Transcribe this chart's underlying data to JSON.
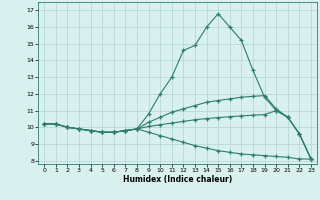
{
  "title": "",
  "xlabel": "Humidex (Indice chaleur)",
  "x_values": [
    0,
    1,
    2,
    3,
    4,
    5,
    6,
    7,
    8,
    9,
    10,
    11,
    12,
    13,
    14,
    15,
    16,
    17,
    18,
    19,
    20,
    21,
    22,
    23
  ],
  "line1_y": [
    10.2,
    10.2,
    10.0,
    9.9,
    9.8,
    9.7,
    9.7,
    9.8,
    9.9,
    10.8,
    12.0,
    13.0,
    14.6,
    14.9,
    16.0,
    16.8,
    16.0,
    15.2,
    13.4,
    11.8,
    11.0,
    10.6,
    9.6,
    8.1
  ],
  "line2_y": [
    10.2,
    10.2,
    10.0,
    9.9,
    9.8,
    9.7,
    9.7,
    9.8,
    9.9,
    10.3,
    10.6,
    10.9,
    11.1,
    11.3,
    11.5,
    11.6,
    11.7,
    11.8,
    11.85,
    11.9,
    11.1,
    10.6,
    9.6,
    8.1
  ],
  "line3_y": [
    10.2,
    10.2,
    10.0,
    9.9,
    9.8,
    9.7,
    9.7,
    9.8,
    9.9,
    10.05,
    10.15,
    10.25,
    10.35,
    10.45,
    10.52,
    10.58,
    10.63,
    10.68,
    10.72,
    10.76,
    11.0,
    10.6,
    9.6,
    8.1
  ],
  "line4_y": [
    10.2,
    10.2,
    10.0,
    9.9,
    9.8,
    9.7,
    9.7,
    9.8,
    9.9,
    9.7,
    9.5,
    9.3,
    9.1,
    8.9,
    8.75,
    8.6,
    8.5,
    8.4,
    8.35,
    8.3,
    8.25,
    8.2,
    8.1,
    8.1
  ],
  "line_color": "#2e7d6e",
  "bg_color": "#d8f0ee",
  "grid_color": "#b8d8d4",
  "ylim": [
    7.8,
    17.5
  ],
  "xlim": [
    -0.5,
    23.5
  ],
  "yticks": [
    8,
    9,
    10,
    11,
    12,
    13,
    14,
    15,
    16,
    17
  ],
  "xticks": [
    0,
    1,
    2,
    3,
    4,
    5,
    6,
    7,
    8,
    9,
    10,
    11,
    12,
    13,
    14,
    15,
    16,
    17,
    18,
    19,
    20,
    21,
    22,
    23
  ]
}
